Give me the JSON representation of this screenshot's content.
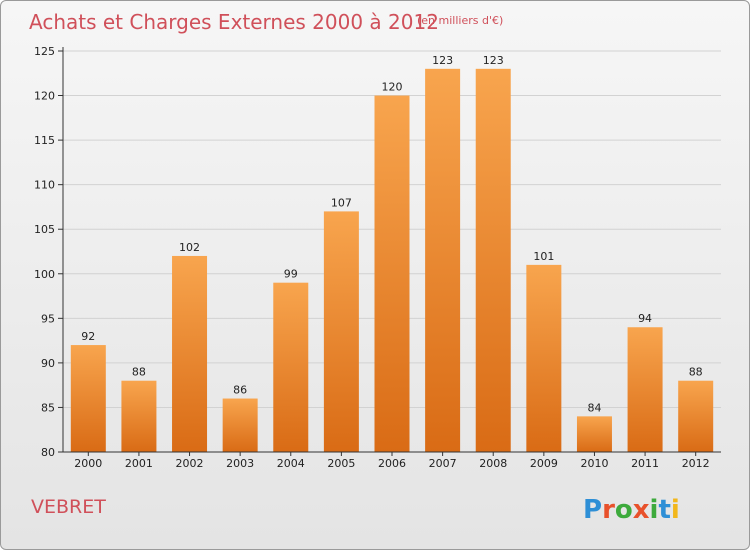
{
  "title": "Achats et Charges Externes 2000 à 2012",
  "subtitle": "(en milliers d'€)",
  "place_label": "VEBRET",
  "logo": {
    "text": "Proxiti",
    "letters": [
      "P",
      "r",
      "o",
      "x",
      "i",
      "t",
      "i"
    ],
    "colors": [
      "#2e8fd6",
      "#e8512b",
      "#3daa3c",
      "#e8512b",
      "#3daa3c",
      "#2e8fd6",
      "#f2b71b"
    ]
  },
  "colors": {
    "bar_light": "#f8a54e",
    "bar_dark": "#d96b15",
    "title": "#d0505a"
  },
  "chart_data": {
    "type": "bar",
    "categories": [
      "2000",
      "2001",
      "2002",
      "2003",
      "2004",
      "2005",
      "2006",
      "2007",
      "2008",
      "2009",
      "2010",
      "2011",
      "2012"
    ],
    "values": [
      92,
      88,
      102,
      86,
      99,
      107,
      120,
      123,
      123,
      101,
      84,
      94,
      88
    ],
    "ylim": [
      80,
      125
    ],
    "yticks": [
      80,
      85,
      90,
      95,
      100,
      105,
      110,
      115,
      120,
      125
    ],
    "grid": true,
    "data_labels": true
  }
}
